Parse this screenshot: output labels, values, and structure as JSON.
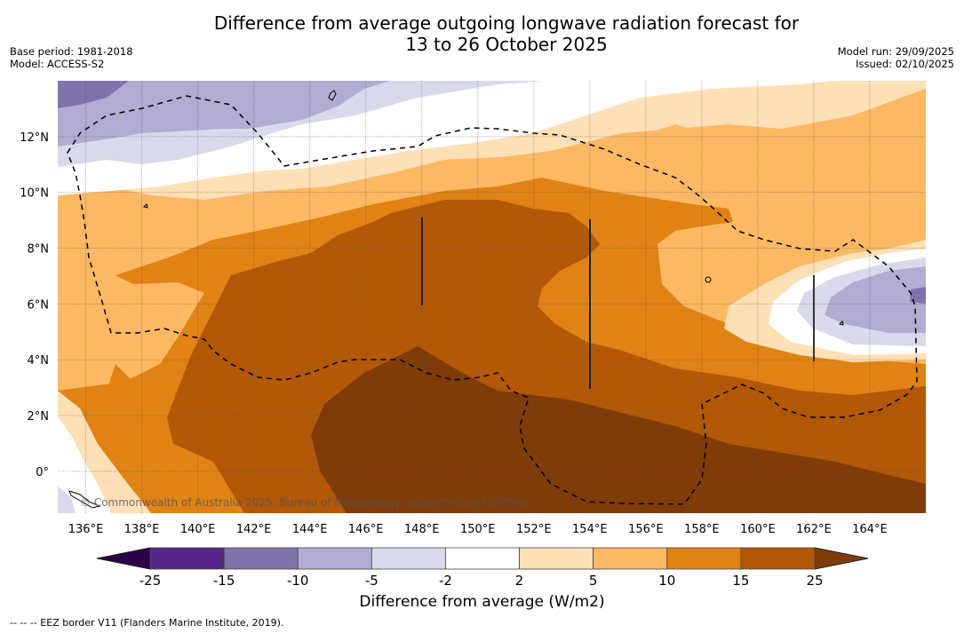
{
  "header": {
    "title_line1": "Difference from average outgoing longwave radiation forecast for",
    "title_line2": "13 to 26 October 2025",
    "base_period": "Base period: 1981-2018",
    "model": "Model: ACCESS-S2",
    "model_run": "Model run: 29/09/2025",
    "issued": "Issued: 02/10/2025"
  },
  "map": {
    "lon_range": [
      135,
      166
    ],
    "lat_range": [
      -1.5,
      14
    ],
    "lon_ticks": [
      136,
      138,
      140,
      142,
      144,
      146,
      148,
      150,
      152,
      154,
      156,
      158,
      160,
      162,
      164
    ],
    "lon_tick_labels": [
      "136°E",
      "138°E",
      "140°E",
      "142°E",
      "144°E",
      "146°E",
      "148°E",
      "150°E",
      "152°E",
      "154°E",
      "156°E",
      "158°E",
      "160°E",
      "162°E",
      "164°E"
    ],
    "lat_ticks": [
      12,
      10,
      8,
      6,
      4,
      2,
      0
    ],
    "lat_tick_labels": [
      "12°N",
      "10°N",
      "8°N",
      "6°N",
      "4°N",
      "2°N",
      "0°"
    ],
    "copyright": "© Commonwealth of Australia 2025, Bureau of Meteorology, supported by COSPPac",
    "gridlines": true
  },
  "colorbar": {
    "title": "Difference from average (W/m2)",
    "ticks": [
      "-25",
      "-15",
      "-10",
      "-5",
      "-2",
      "2",
      "5",
      "10",
      "15",
      "25"
    ],
    "under_color": "#2d004b",
    "over_color": "#7f3b08",
    "colors": [
      "#542788",
      "#8073ac",
      "#b2abd2",
      "#d8daeb",
      "#ffffff",
      "#fee0b6",
      "#fdb863",
      "#e08214",
      "#b35806"
    ]
  },
  "footer": {
    "legend": "--  --  -- EEZ border V11 (Flanders Marine Institute, 2019)."
  }
}
